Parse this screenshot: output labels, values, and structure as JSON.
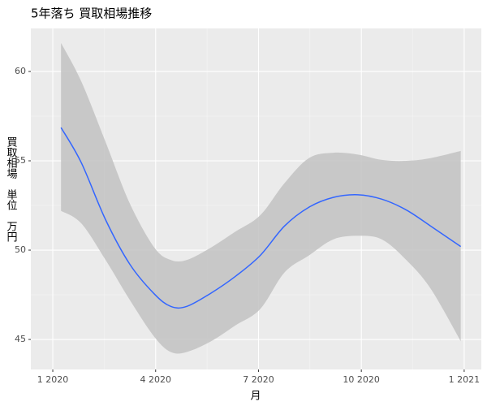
{
  "chart_data": {
    "type": "line",
    "title": "5年落ち 買取相場推移",
    "xlabel": "月",
    "ylabel": "買取相場　単位　万円",
    "x": [
      1.24,
      1.83,
      2.54,
      3.25,
      3.96,
      4.44,
      4.91,
      5.62,
      6.34,
      7.05,
      7.76,
      8.47,
      9.18,
      9.9,
      10.6,
      11.31,
      12.02,
      12.9
    ],
    "values": [
      56.86,
      54.9,
      51.7,
      49.2,
      47.55,
      46.85,
      46.85,
      47.6,
      48.55,
      49.7,
      51.35,
      52.4,
      52.95,
      53.1,
      52.85,
      52.25,
      51.35,
      50.2
    ],
    "upper": [
      61.6,
      59.45,
      56.05,
      52.6,
      50.15,
      49.45,
      49.45,
      50.15,
      51.05,
      51.95,
      53.75,
      55.15,
      55.45,
      55.35,
      55.05,
      55.0,
      55.15,
      55.55
    ],
    "lower": [
      52.2,
      51.5,
      49.45,
      47.2,
      45.15,
      44.3,
      44.3,
      44.9,
      45.8,
      46.7,
      48.75,
      49.7,
      50.6,
      50.8,
      50.6,
      49.45,
      47.85,
      44.9
    ],
    "color": "#3366ff",
    "band_color": "#c2c2c2",
    "xlim": [
      0.36,
      13.5
    ],
    "xticks": [
      {
        "value": 1,
        "label": "1 2020"
      },
      {
        "value": 4,
        "label": "4 2020"
      },
      {
        "value": 7,
        "label": "7 2020"
      },
      {
        "value": 10,
        "label": "10 2020"
      },
      {
        "value": 13,
        "label": "1 2021"
      }
    ],
    "ylim": [
      43.32,
      62.41
    ],
    "yticks": [
      45,
      50,
      55,
      60
    ],
    "grid": true
  }
}
